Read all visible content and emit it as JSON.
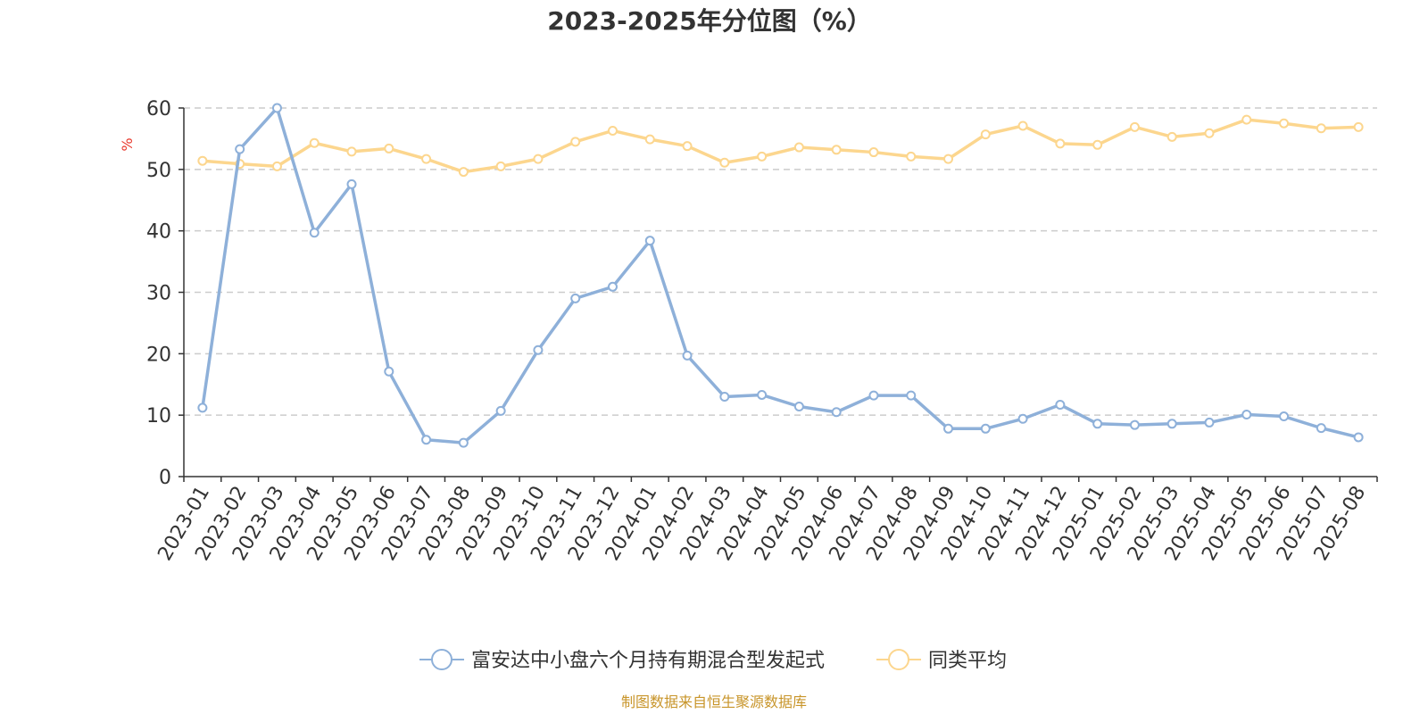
{
  "chart_data": {
    "type": "line",
    "title": "2023-2025年分位图（%）",
    "ylabel": "%",
    "xlabel": "",
    "ylim": [
      0,
      60
    ],
    "yticks": [
      0,
      10,
      20,
      30,
      40,
      50,
      60
    ],
    "grid": true,
    "legend_position": "bottom",
    "x": [
      "2023-01",
      "2023-02",
      "2023-03",
      "2023-04",
      "2023-05",
      "2023-06",
      "2023-07",
      "2023-08",
      "2023-09",
      "2023-10",
      "2023-11",
      "2023-12",
      "2024-01",
      "2024-02",
      "2024-03",
      "2024-04",
      "2024-05",
      "2024-06",
      "2024-07",
      "2024-08",
      "2024-09",
      "2024-10",
      "2024-11",
      "2024-12",
      "2025-01",
      "2025-02",
      "2025-03",
      "2025-04",
      "2025-05",
      "2025-06",
      "2025-07",
      "2025-08"
    ],
    "series": [
      {
        "name": "富安达中小盘六个月持有期混合型发起式",
        "color": "#8eb0d9",
        "values": [
          11.2,
          53.3,
          60.0,
          39.7,
          47.6,
          17.1,
          6.0,
          5.5,
          10.7,
          20.6,
          29.0,
          30.9,
          38.4,
          19.7,
          13.0,
          13.3,
          11.4,
          10.5,
          13.2,
          13.2,
          7.8,
          7.8,
          9.4,
          11.7,
          8.6,
          8.4,
          8.6,
          8.8,
          10.1,
          9.8,
          7.9,
          6.4
        ]
      },
      {
        "name": "同类平均",
        "color": "#fcd68e",
        "values": [
          51.4,
          50.9,
          50.5,
          54.3,
          52.9,
          53.4,
          51.7,
          49.6,
          50.5,
          51.7,
          54.5,
          56.3,
          54.9,
          53.8,
          51.1,
          52.1,
          53.6,
          53.2,
          52.8,
          52.1,
          51.7,
          55.7,
          57.1,
          54.2,
          54.0,
          56.9,
          55.3,
          55.9,
          58.1,
          57.5,
          56.7,
          56.9
        ]
      }
    ]
  },
  "source_note": "制图数据来自恒生聚源数据库",
  "colors": {
    "unit_label": "#e8382c",
    "source_note": "#c8952a",
    "axis": "#333333",
    "grid": "#cccccc"
  }
}
